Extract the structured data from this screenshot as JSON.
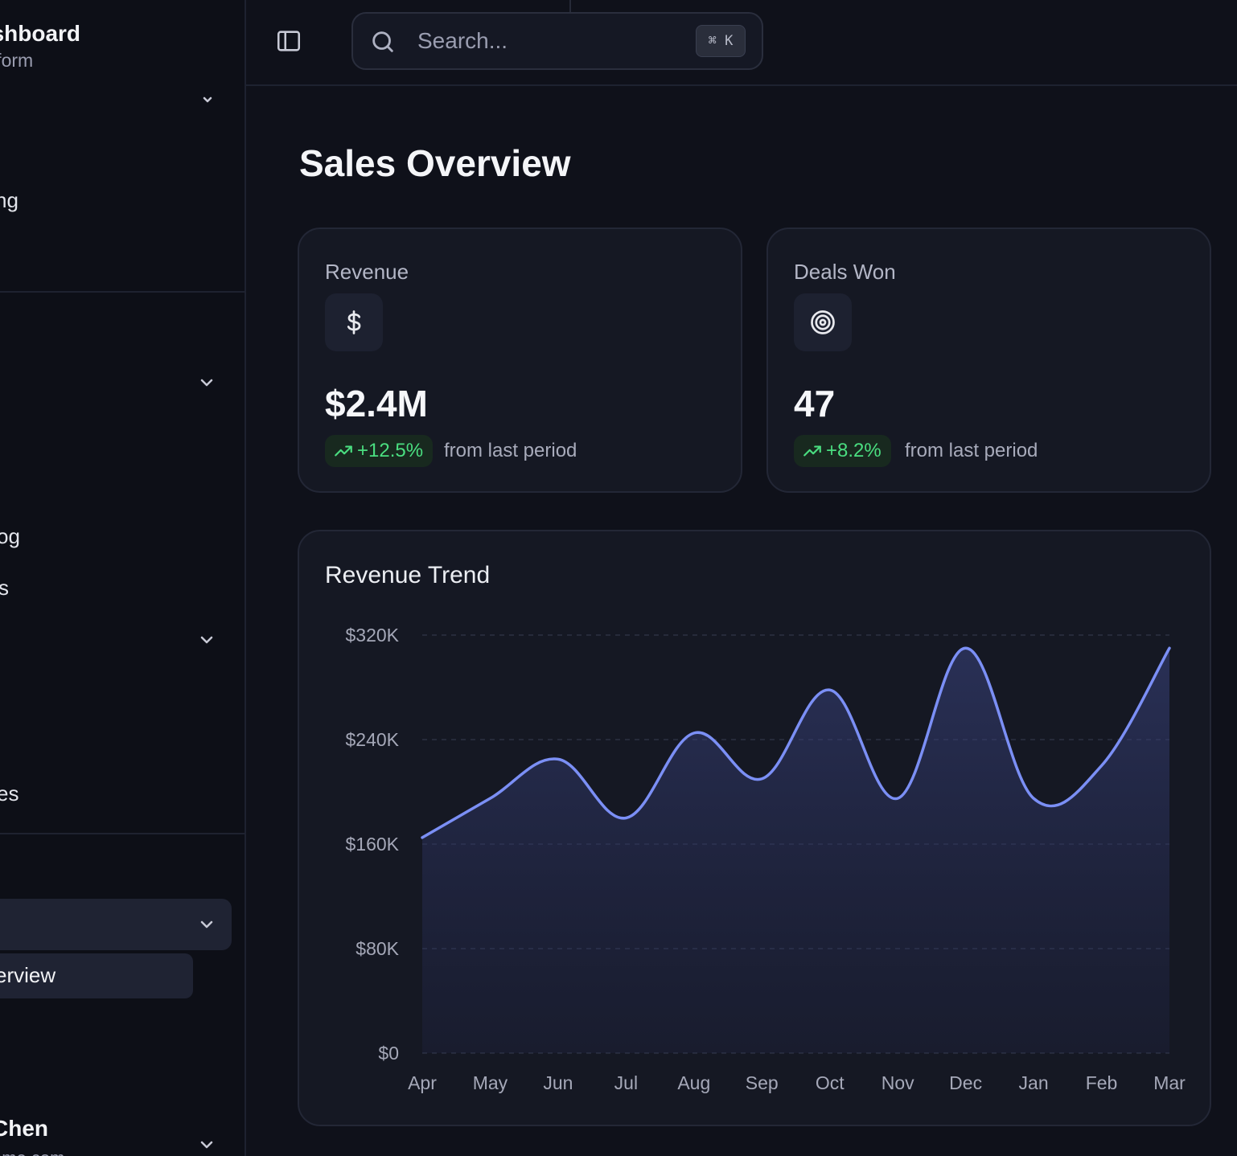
{
  "sidebar": {
    "brand_title": "ashboard",
    "brand_subtitle": "atform",
    "items": [
      {
        "label": "ng"
      },
      {
        "label": "og"
      },
      {
        "label": "s"
      },
      {
        "label": "."
      },
      {
        "label": "es"
      },
      {
        "label": "erview"
      }
    ],
    "user": {
      "name": "Chen",
      "email": "ome.com"
    }
  },
  "header": {
    "search_placeholder": "Search...",
    "search_shortcut": "⌘ K"
  },
  "main": {
    "title": "Sales Overview",
    "cards": [
      {
        "label": "Revenue",
        "icon": "dollar-icon",
        "value": "$2.4M",
        "change": "+12.5%",
        "sub": "from last period"
      },
      {
        "label": "Deals Won",
        "icon": "target-icon",
        "value": "47",
        "change": "+8.2%",
        "sub": "from last period"
      }
    ],
    "chart_title": "Revenue Trend"
  },
  "colors": {
    "accent_line": "#7b8ff5",
    "positive": "#4ade80",
    "background": "#0f111a",
    "card": "#151823"
  },
  "chart_data": {
    "type": "area",
    "title": "Revenue Trend",
    "categories": [
      "Apr",
      "May",
      "Jun",
      "Jul",
      "Aug",
      "Sep",
      "Oct",
      "Nov",
      "Dec",
      "Jan",
      "Feb",
      "Mar"
    ],
    "values": [
      165000,
      195000,
      225000,
      180000,
      245000,
      210000,
      278000,
      195000,
      310000,
      195000,
      220000,
      310000
    ],
    "y_ticks": [
      "$0",
      "$80K",
      "$160K",
      "$240K",
      "$320K"
    ],
    "ylim": [
      0,
      320000
    ],
    "grid": true,
    "legend": "none"
  }
}
